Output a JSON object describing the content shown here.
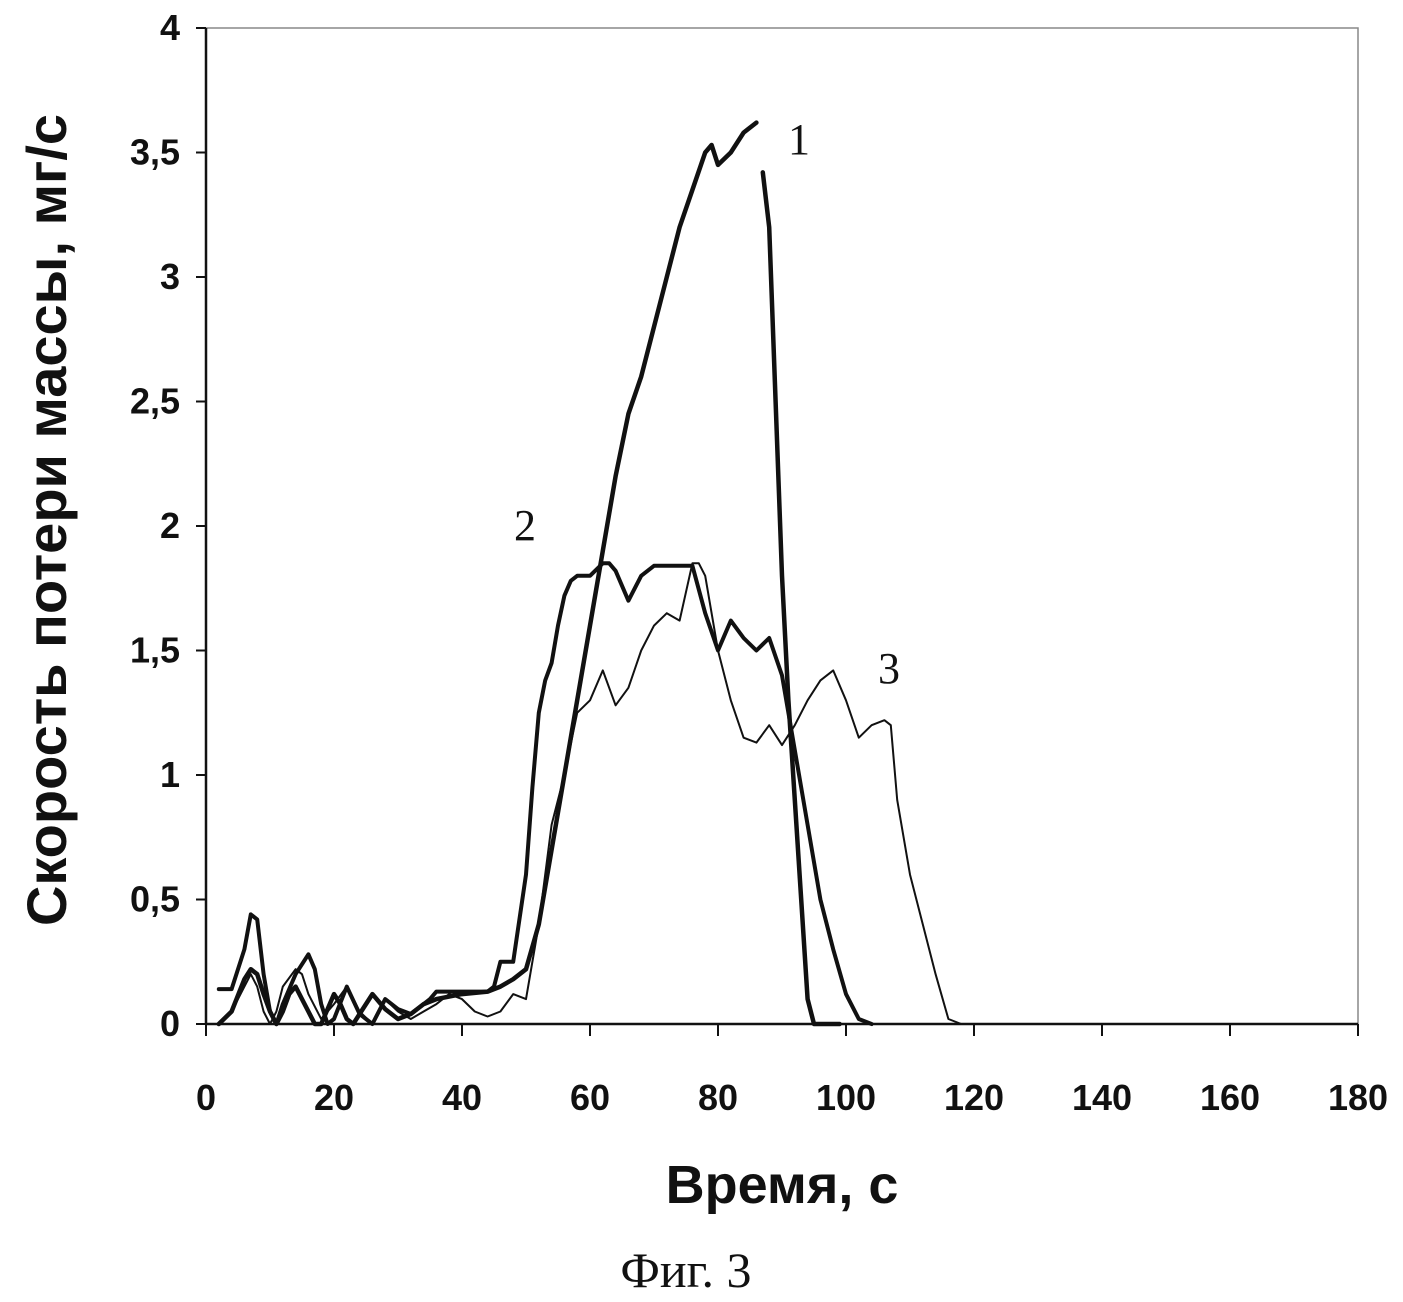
{
  "chart_data": {
    "type": "line",
    "xlabel": "Время, с",
    "ylabel": "Скорость потери массы, мг/с",
    "xlim": [
      0,
      180
    ],
    "ylim": [
      0,
      4
    ],
    "xticks": [
      0,
      20,
      40,
      60,
      80,
      100,
      120,
      140,
      160,
      180
    ],
    "yticks": [
      0,
      0.5,
      1,
      1.5,
      2,
      2.5,
      3,
      3.5,
      4
    ],
    "xtick_labels": [
      "0",
      "20",
      "40",
      "60",
      "80",
      "100",
      "120",
      "140",
      "160",
      "180"
    ],
    "ytick_labels": [
      "0",
      "0,5",
      "1",
      "1,5",
      "2",
      "2,5",
      "3",
      "3,5",
      "4"
    ],
    "grid": false,
    "legend": "none",
    "series": [
      {
        "name": "1",
        "color": "#111111",
        "x": [
          2,
          4,
          6,
          7,
          8,
          9,
          10,
          11,
          12,
          13,
          14,
          15,
          16,
          17,
          18,
          19,
          20,
          21,
          22,
          23,
          24,
          26,
          28,
          30,
          32,
          34,
          36,
          40,
          44,
          46,
          48,
          49,
          50,
          52,
          54,
          56,
          58,
          60,
          62,
          64,
          66,
          68,
          70,
          72,
          74,
          76,
          78,
          79,
          80,
          82,
          84,
          86
        ],
        "y": [
          0,
          0.05,
          0.18,
          0.22,
          0.2,
          0.12,
          0.05,
          0,
          0.05,
          0.12,
          0.15,
          0.1,
          0.05,
          0,
          0,
          0.06,
          0.12,
          0.08,
          0.02,
          0,
          0.04,
          0.12,
          0.06,
          0.02,
          0.04,
          0.08,
          0.1,
          0.12,
          0.13,
          0.15,
          0.18,
          0.2,
          0.22,
          0.4,
          0.7,
          1.0,
          1.3,
          1.6,
          1.9,
          2.2,
          2.45,
          2.6,
          2.8,
          3.0,
          3.2,
          3.35,
          3.5,
          3.53,
          3.45,
          3.5,
          3.58,
          3.62
        ]
      },
      {
        "name": "1",
        "color": "#111111",
        "x": [
          87,
          88,
          89,
          90,
          91,
          92,
          93,
          94,
          95,
          97,
          99
        ],
        "y": [
          3.42,
          3.2,
          2.5,
          1.8,
          1.3,
          0.9,
          0.5,
          0.1,
          0,
          0,
          0
        ]
      },
      {
        "name": "2",
        "color": "#111111",
        "x": [
          2,
          4,
          6,
          7,
          8,
          9,
          10,
          11,
          12,
          14,
          16,
          17,
          18,
          19,
          20,
          22,
          24,
          26,
          28,
          30,
          32,
          34,
          35,
          36,
          40,
          44,
          45,
          46,
          48,
          50,
          51,
          52,
          53,
          54,
          55,
          56,
          57,
          58,
          60,
          62,
          63,
          64,
          66,
          68,
          70,
          72,
          74,
          76,
          78,
          80,
          82,
          84,
          86,
          88,
          90,
          92,
          94,
          96,
          98,
          100,
          102,
          104
        ],
        "y": [
          0.14,
          0.14,
          0.3,
          0.44,
          0.42,
          0.2,
          0.05,
          0,
          0.08,
          0.2,
          0.28,
          0.22,
          0.08,
          0,
          0.02,
          0.15,
          0.04,
          0,
          0.1,
          0.06,
          0.04,
          0.08,
          0.1,
          0.13,
          0.13,
          0.13,
          0.15,
          0.25,
          0.25,
          0.6,
          0.95,
          1.25,
          1.38,
          1.45,
          1.6,
          1.72,
          1.78,
          1.8,
          1.8,
          1.85,
          1.85,
          1.82,
          1.7,
          1.8,
          1.84,
          1.84,
          1.84,
          1.84,
          1.65,
          1.5,
          1.62,
          1.55,
          1.5,
          1.55,
          1.4,
          1.1,
          0.8,
          0.5,
          0.3,
          0.12,
          0.02,
          0
        ]
      },
      {
        "name": "3",
        "color": "#111111",
        "x": [
          2,
          4,
          6,
          7,
          8,
          9,
          10,
          11,
          12,
          14,
          15,
          16,
          18,
          20,
          22,
          24,
          26,
          28,
          30,
          32,
          34,
          36,
          38,
          40,
          42,
          44,
          46,
          48,
          50,
          52,
          54,
          56,
          58,
          60,
          62,
          64,
          66,
          68,
          70,
          72,
          74,
          76,
          77,
          78,
          80,
          82,
          84,
          86,
          88,
          90,
          92,
          94,
          96,
          98,
          100,
          102,
          104,
          106,
          107,
          108,
          110,
          112,
          114,
          116,
          118,
          120
        ],
        "y": [
          0,
          0.05,
          0.15,
          0.2,
          0.15,
          0.05,
          0,
          0.05,
          0.15,
          0.22,
          0.2,
          0.12,
          0.02,
          0.08,
          0.15,
          0.05,
          0,
          0.1,
          0.05,
          0.02,
          0.05,
          0.08,
          0.12,
          0.1,
          0.05,
          0.03,
          0.05,
          0.12,
          0.1,
          0.4,
          0.8,
          1.0,
          1.25,
          1.3,
          1.42,
          1.28,
          1.35,
          1.5,
          1.6,
          1.65,
          1.62,
          1.85,
          1.85,
          1.8,
          1.5,
          1.3,
          1.15,
          1.13,
          1.2,
          1.12,
          1.2,
          1.3,
          1.38,
          1.42,
          1.3,
          1.15,
          1.2,
          1.22,
          1.2,
          0.9,
          0.6,
          0.4,
          0.2,
          0.02,
          0,
          0
        ]
      }
    ],
    "series_labels": [
      "1",
      "2",
      "3"
    ],
    "caption": "Фиг. 3"
  }
}
